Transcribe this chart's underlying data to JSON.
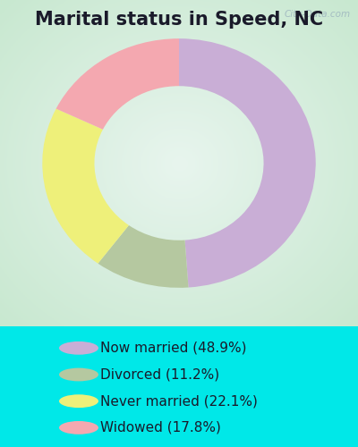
{
  "title": "Marital status in Speed, NC",
  "slices": [
    48.9,
    11.2,
    22.1,
    17.8
  ],
  "labels": [
    "Now married (48.9%)",
    "Divorced (11.2%)",
    "Never married (22.1%)",
    "Widowed (17.8%)"
  ],
  "colors": [
    "#c9aed6",
    "#b5c8a0",
    "#eef07a",
    "#f4a8b0"
  ],
  "outer_bg_color": "#00e8e8",
  "chart_bg_gradient_outer": "#c8e8d0",
  "chart_bg_gradient_inner": "#e8f5ee",
  "watermark": "City-Data.com",
  "start_angle": 90,
  "ring_outer_r": 0.42,
  "ring_inner_r": 0.26,
  "title_fontsize": 15,
  "legend_fontsize": 11,
  "legend_marker_size": 12
}
